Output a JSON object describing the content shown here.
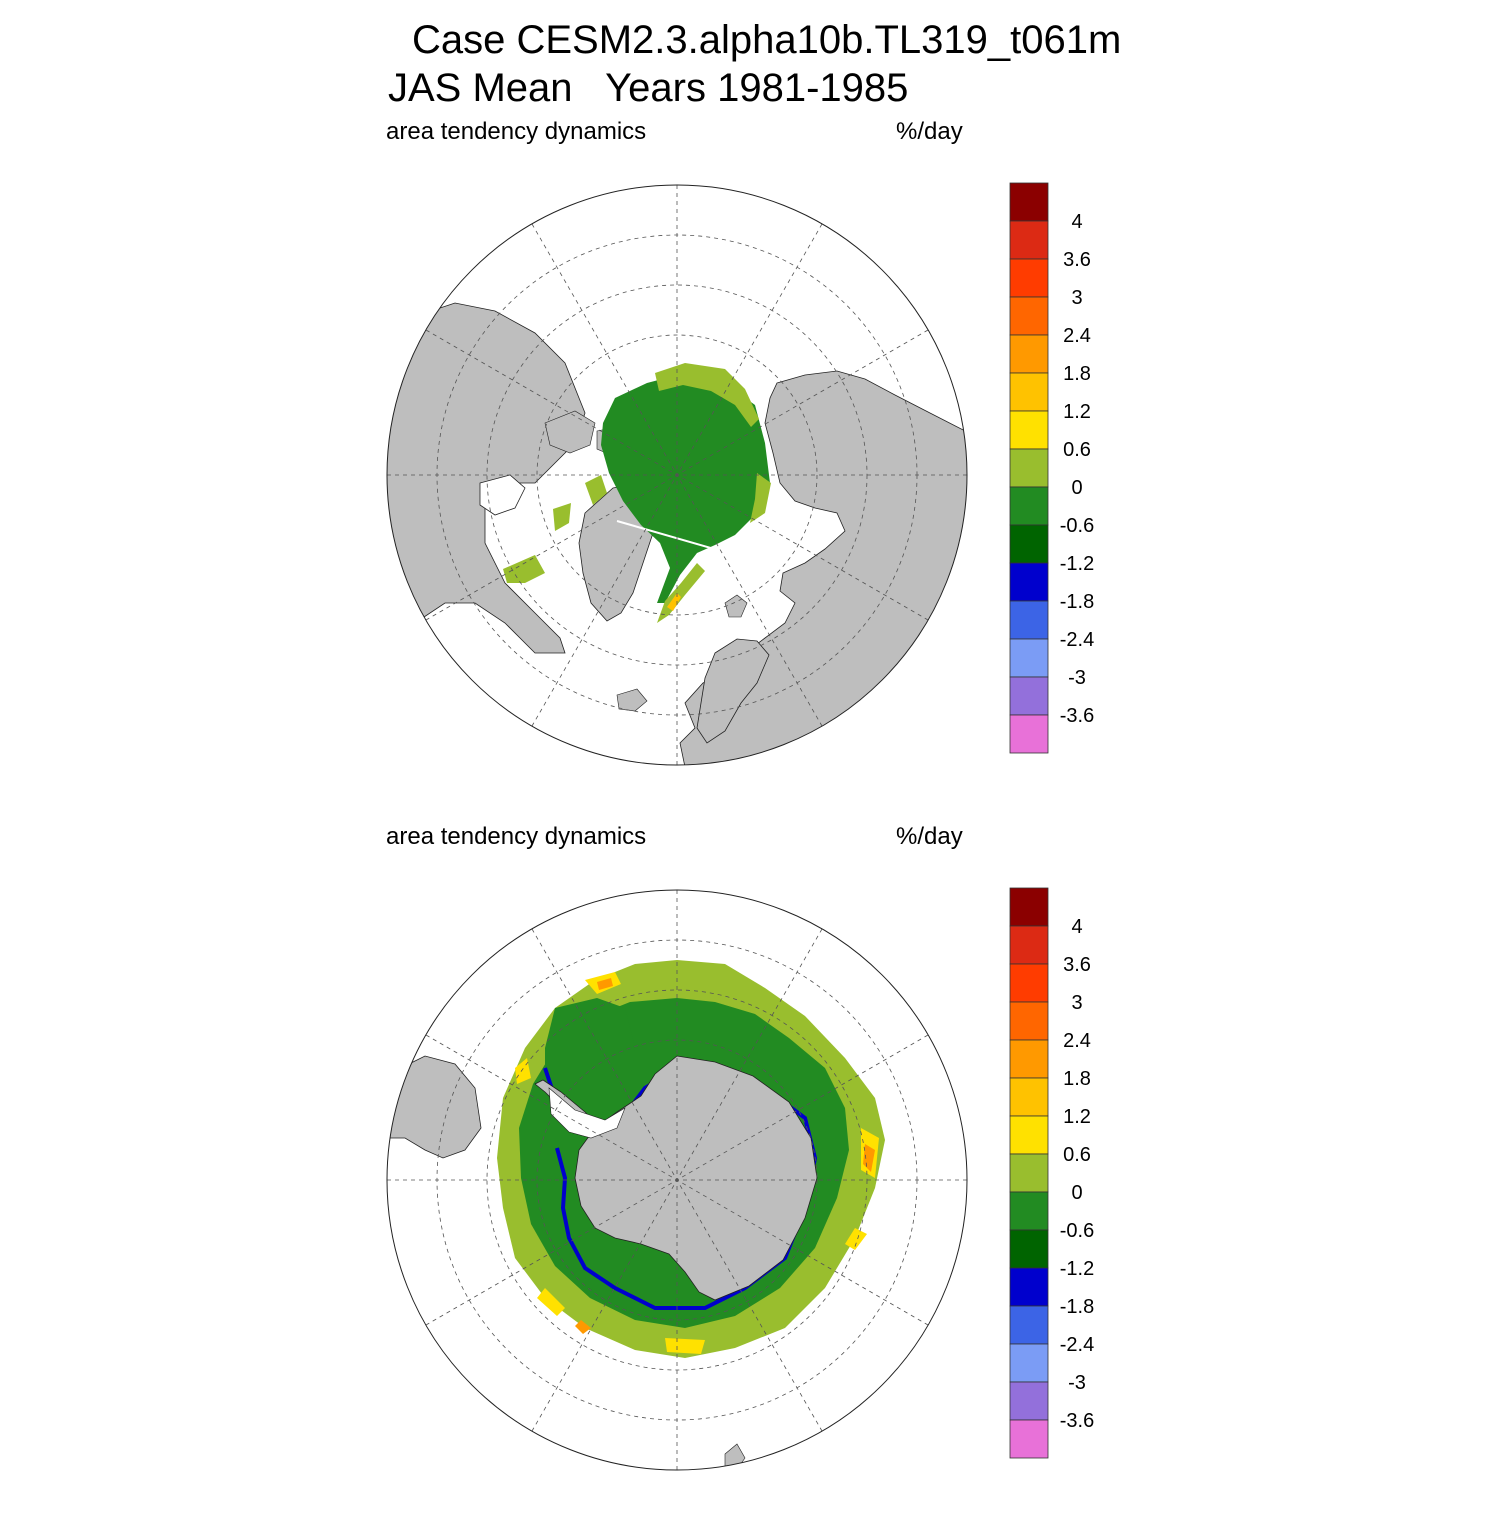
{
  "title": {
    "line1": "Case CESM2.3.alpha10b.TL319_t061m",
    "line2": "JAS Mean   Years 1981-1985"
  },
  "panels": [
    {
      "id": "north",
      "hemisphere": "Arctic (north polar stereographic)",
      "variable_label": "area tendency dynamics",
      "units_label": "%/day"
    },
    {
      "id": "south",
      "hemisphere": "Antarctic (south polar stereographic)",
      "variable_label": "area tendency dynamics",
      "units_label": "%/day"
    }
  ],
  "colorbar": {
    "tick_labels": [
      "4",
      "3.6",
      "3",
      "2.4",
      "1.8",
      "1.2",
      "0.6",
      "0",
      "-0.6",
      "-1.2",
      "-1.8",
      "-2.4",
      "-3",
      "-3.6"
    ],
    "colors": [
      "#8b0000",
      "#dc2a14",
      "#ff3c00",
      "#ff6600",
      "#ff9900",
      "#ffc200",
      "#ffe100",
      "#99be2e",
      "#228b22",
      "#006400",
      "#0000cd",
      "#3c64e6",
      "#7b9cf5",
      "#9370db",
      "#e871d8"
    ]
  },
  "colors": {
    "land": "#bebebe",
    "ocean_no_ice": "#ffffff",
    "grid": "#555555"
  }
}
